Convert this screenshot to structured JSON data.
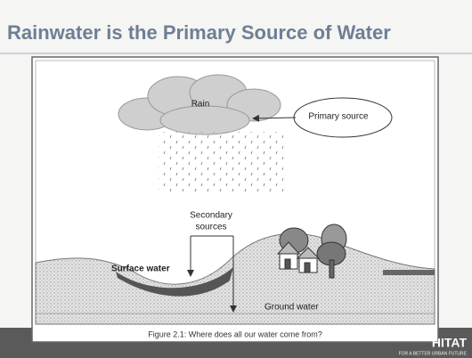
{
  "header": {
    "title": "Rainwater is the Primary Source of Water"
  },
  "diagram": {
    "labels": {
      "rain": "Rain",
      "primary": "Primary source",
      "secondary_line1": "Secondary",
      "secondary_line2": "sources",
      "surface": "Surface water",
      "ground": "Ground water"
    },
    "caption": "Figure 2.1: Where does all our water come from?"
  },
  "footer": {
    "logo": "HITAT",
    "tagline": "FOR A BETTER URBAN FUTURE"
  }
}
